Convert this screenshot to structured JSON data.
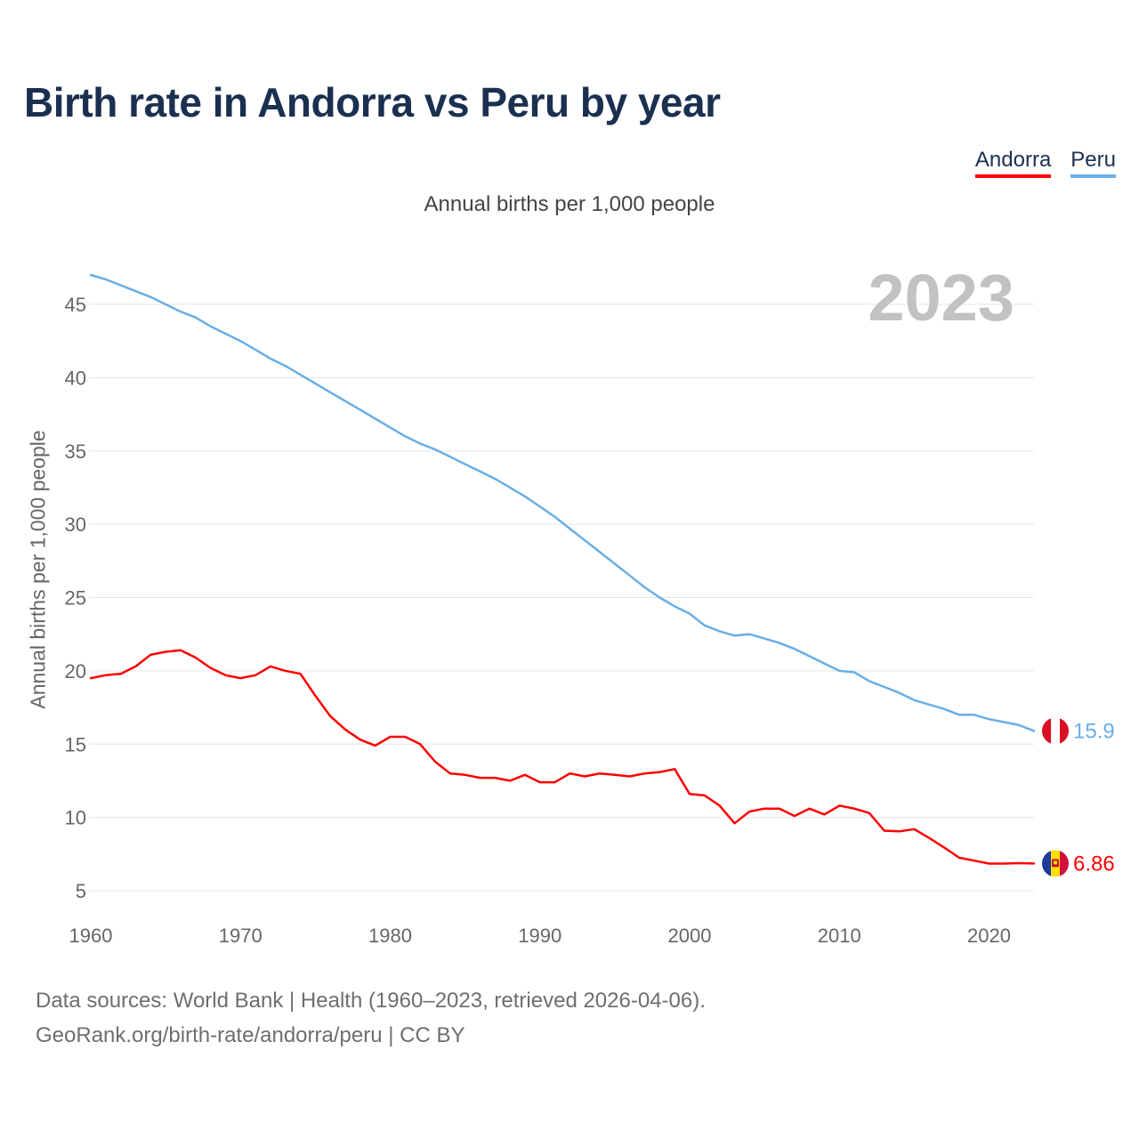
{
  "title": "Birth rate in Andorra vs Peru by year",
  "subtitle": "Annual births per 1,000 people",
  "year_label": "2023",
  "legend": [
    {
      "name": "Andorra",
      "color": "#ff0000"
    },
    {
      "name": "Peru",
      "color": "#6aaee6"
    }
  ],
  "footer": {
    "line1": "Data sources: World Bank | Health (1960–2023, retrieved 2026-04-06).",
    "line2": "GeoRank.org/birth-rate/andorra/peru | CC BY"
  },
  "chart_data": {
    "type": "line",
    "title": "Birth rate in Andorra vs Peru by year",
    "xlabel": "",
    "ylabel": "Annual births per 1,000 people",
    "xlim": [
      1960,
      2023
    ],
    "ylim": [
      4,
      47.5
    ],
    "grid": true,
    "legend_position": "top-right",
    "xticks": [
      1960,
      1970,
      1980,
      1990,
      2000,
      2010,
      2020
    ],
    "yticks": [
      5,
      10,
      15,
      20,
      25,
      30,
      35,
      40,
      45
    ],
    "x": [
      1960,
      1961,
      1962,
      1963,
      1964,
      1965,
      1966,
      1967,
      1968,
      1969,
      1970,
      1971,
      1972,
      1973,
      1974,
      1975,
      1976,
      1977,
      1978,
      1979,
      1980,
      1981,
      1982,
      1983,
      1984,
      1985,
      1986,
      1987,
      1988,
      1989,
      1990,
      1991,
      1992,
      1993,
      1994,
      1995,
      1996,
      1997,
      1998,
      1999,
      2000,
      2001,
      2002,
      2003,
      2004,
      2005,
      2006,
      2007,
      2008,
      2009,
      2010,
      2011,
      2012,
      2013,
      2014,
      2015,
      2016,
      2017,
      2018,
      2019,
      2020,
      2021,
      2022,
      2023
    ],
    "series": [
      {
        "name": "Andorra",
        "color": "#ff0000",
        "end_label": "6.86",
        "values": [
          19.5,
          19.7,
          19.8,
          20.3,
          21.1,
          21.3,
          21.4,
          20.9,
          20.2,
          19.7,
          19.5,
          19.7,
          20.3,
          20.0,
          19.8,
          18.3,
          16.9,
          16.0,
          15.3,
          14.9,
          15.5,
          15.5,
          15.0,
          13.8,
          13.0,
          12.9,
          12.7,
          12.7,
          12.5,
          12.9,
          12.4,
          12.4,
          13.0,
          12.8,
          13.0,
          12.9,
          12.8,
          13.0,
          13.1,
          13.3,
          11.6,
          11.5,
          10.8,
          9.6,
          10.4,
          10.6,
          10.6,
          10.1,
          10.6,
          10.2,
          10.8,
          10.6,
          10.3,
          9.1,
          9.05,
          9.2,
          8.6,
          7.95,
          7.25,
          7.05,
          6.85,
          6.85,
          6.88,
          6.86
        ]
      },
      {
        "name": "Peru",
        "color": "#6aaee6",
        "end_label": "15.9",
        "values": [
          47.0,
          46.7,
          46.3,
          45.9,
          45.5,
          45.0,
          44.5,
          44.1,
          43.5,
          43.0,
          42.5,
          41.9,
          41.3,
          40.8,
          40.2,
          39.6,
          39.0,
          38.4,
          37.8,
          37.2,
          36.6,
          36.0,
          35.5,
          35.1,
          34.6,
          34.1,
          33.6,
          33.1,
          32.5,
          31.9,
          31.2,
          30.5,
          29.7,
          28.9,
          28.1,
          27.3,
          26.5,
          25.7,
          25.0,
          24.4,
          23.9,
          23.1,
          22.7,
          22.4,
          22.5,
          22.2,
          21.9,
          21.5,
          21.0,
          20.5,
          20.0,
          19.9,
          19.3,
          18.9,
          18.5,
          18.0,
          17.7,
          17.4,
          17.0,
          17.0,
          16.7,
          16.5,
          16.3,
          15.9
        ]
      }
    ]
  }
}
